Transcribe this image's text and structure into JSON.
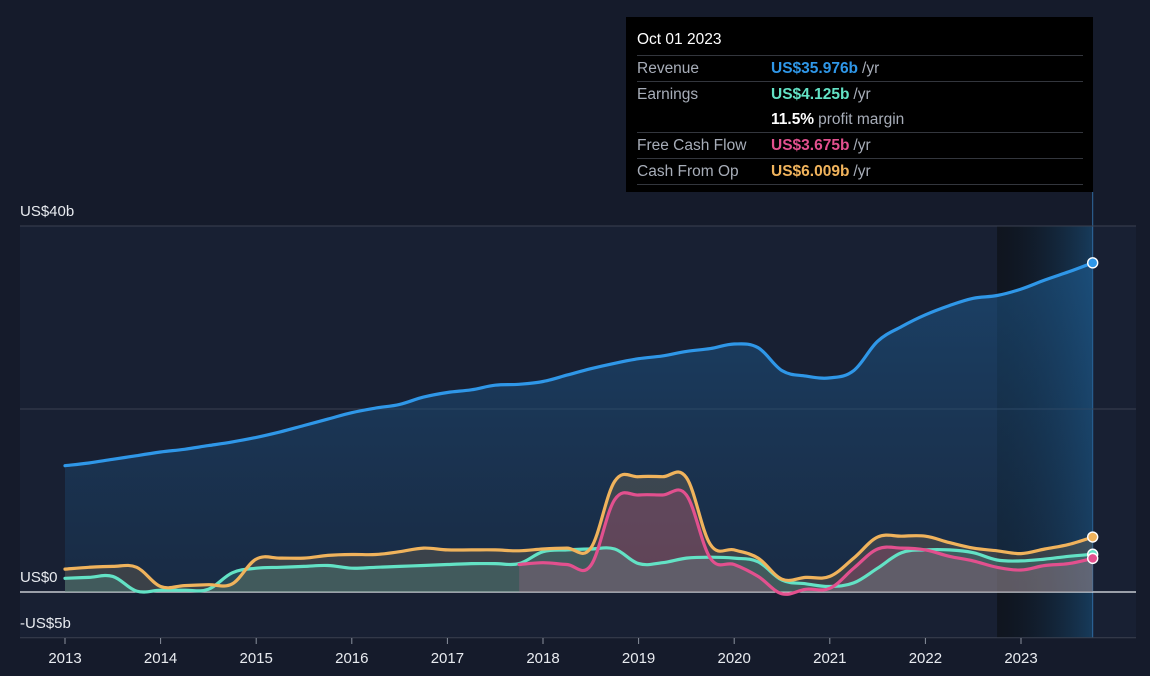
{
  "chart_data": {
    "type": "area",
    "y_unit": "US$b",
    "ylim": [
      -5,
      40
    ],
    "y_axis_labels": [
      {
        "value": 40,
        "label": "US$40b"
      },
      {
        "value": 0,
        "label": "US$0"
      },
      {
        "value": -5,
        "label": "-US$5b"
      }
    ],
    "x_ticks": [
      "2013",
      "2014",
      "2015",
      "2016",
      "2017",
      "2018",
      "2019",
      "2020",
      "2021",
      "2022",
      "2023"
    ],
    "xlim": [
      2013.0,
      2024.13
    ],
    "highlight_start": 2022.75,
    "highlight_end": 2023.75,
    "colors": {
      "revenue": "#2f97e8",
      "earnings": "#63e2c5",
      "fcf": "#e2508e",
      "cfo": "#f0b35c",
      "background": "#151b2b"
    },
    "series": [
      {
        "name": "Revenue",
        "key": "revenue",
        "points": [
          [
            2013.0,
            13.8
          ],
          [
            2013.25,
            14.1
          ],
          [
            2013.5,
            14.5
          ],
          [
            2013.75,
            14.9
          ],
          [
            2014.0,
            15.3
          ],
          [
            2014.25,
            15.6
          ],
          [
            2014.5,
            16.0
          ],
          [
            2014.75,
            16.4
          ],
          [
            2015.0,
            16.9
          ],
          [
            2015.25,
            17.5
          ],
          [
            2015.5,
            18.2
          ],
          [
            2015.75,
            18.9
          ],
          [
            2016.0,
            19.6
          ],
          [
            2016.25,
            20.1
          ],
          [
            2016.5,
            20.5
          ],
          [
            2016.75,
            21.3
          ],
          [
            2017.0,
            21.8
          ],
          [
            2017.25,
            22.1
          ],
          [
            2017.5,
            22.6
          ],
          [
            2017.75,
            22.7
          ],
          [
            2018.0,
            23.0
          ],
          [
            2018.25,
            23.7
          ],
          [
            2018.5,
            24.4
          ],
          [
            2018.75,
            25.0
          ],
          [
            2019.0,
            25.5
          ],
          [
            2019.25,
            25.8
          ],
          [
            2019.5,
            26.3
          ],
          [
            2019.75,
            26.6
          ],
          [
            2020.0,
            27.1
          ],
          [
            2020.25,
            26.7
          ],
          [
            2020.5,
            24.2
          ],
          [
            2020.75,
            23.6
          ],
          [
            2021.0,
            23.4
          ],
          [
            2021.25,
            24.2
          ],
          [
            2021.5,
            27.4
          ],
          [
            2021.75,
            29.0
          ],
          [
            2022.0,
            30.3
          ],
          [
            2022.25,
            31.3
          ],
          [
            2022.5,
            32.1
          ],
          [
            2022.75,
            32.4
          ],
          [
            2023.0,
            33.1
          ],
          [
            2023.25,
            34.1
          ],
          [
            2023.5,
            35.0
          ],
          [
            2023.75,
            35.976
          ]
        ]
      },
      {
        "name": "Earnings",
        "key": "earnings",
        "points": [
          [
            2013.0,
            1.5
          ],
          [
            2013.25,
            1.6
          ],
          [
            2013.5,
            1.7
          ],
          [
            2013.75,
            0.1
          ],
          [
            2014.0,
            0.2
          ],
          [
            2014.25,
            0.2
          ],
          [
            2014.5,
            0.3
          ],
          [
            2014.75,
            2.1
          ],
          [
            2015.0,
            2.6
          ],
          [
            2015.25,
            2.7
          ],
          [
            2015.5,
            2.8
          ],
          [
            2015.75,
            2.9
          ],
          [
            2016.0,
            2.6
          ],
          [
            2016.25,
            2.7
          ],
          [
            2016.5,
            2.8
          ],
          [
            2016.75,
            2.9
          ],
          [
            2017.0,
            3.0
          ],
          [
            2017.25,
            3.1
          ],
          [
            2017.5,
            3.1
          ],
          [
            2017.75,
            3.1
          ],
          [
            2018.0,
            4.4
          ],
          [
            2018.25,
            4.6
          ],
          [
            2018.5,
            4.7
          ],
          [
            2018.75,
            4.7
          ],
          [
            2019.0,
            3.1
          ],
          [
            2019.25,
            3.2
          ],
          [
            2019.5,
            3.7
          ],
          [
            2019.75,
            3.8
          ],
          [
            2020.0,
            3.7
          ],
          [
            2020.25,
            3.3
          ],
          [
            2020.5,
            1.3
          ],
          [
            2020.75,
            0.9
          ],
          [
            2021.0,
            0.6
          ],
          [
            2021.25,
            1.0
          ],
          [
            2021.5,
            2.6
          ],
          [
            2021.75,
            4.3
          ],
          [
            2022.0,
            4.6
          ],
          [
            2022.25,
            4.6
          ],
          [
            2022.5,
            4.3
          ],
          [
            2022.75,
            3.5
          ],
          [
            2023.0,
            3.4
          ],
          [
            2023.25,
            3.6
          ],
          [
            2023.5,
            3.9
          ],
          [
            2023.75,
            4.125
          ]
        ]
      },
      {
        "name": "Free Cash Flow",
        "key": "fcf",
        "points": [
          [
            2017.75,
            3.0
          ],
          [
            2018.0,
            3.2
          ],
          [
            2018.25,
            3.0
          ],
          [
            2018.5,
            2.9
          ],
          [
            2018.75,
            10.1
          ],
          [
            2019.0,
            10.6
          ],
          [
            2019.25,
            10.6
          ],
          [
            2019.5,
            10.6
          ],
          [
            2019.75,
            3.7
          ],
          [
            2020.0,
            3.0
          ],
          [
            2020.25,
            1.7
          ],
          [
            2020.5,
            -0.2
          ],
          [
            2020.75,
            0.3
          ],
          [
            2021.0,
            0.4
          ],
          [
            2021.25,
            2.6
          ],
          [
            2021.5,
            4.7
          ],
          [
            2021.75,
            4.8
          ],
          [
            2022.0,
            4.6
          ],
          [
            2022.25,
            3.9
          ],
          [
            2022.5,
            3.4
          ],
          [
            2022.75,
            2.7
          ],
          [
            2023.0,
            2.4
          ],
          [
            2023.25,
            2.9
          ],
          [
            2023.5,
            3.1
          ],
          [
            2023.75,
            3.675
          ]
        ]
      },
      {
        "name": "Cash From Op",
        "key": "cfo",
        "points": [
          [
            2013.0,
            2.5
          ],
          [
            2013.25,
            2.7
          ],
          [
            2013.5,
            2.8
          ],
          [
            2013.75,
            2.7
          ],
          [
            2014.0,
            0.6
          ],
          [
            2014.25,
            0.7
          ],
          [
            2014.5,
            0.8
          ],
          [
            2014.75,
            0.9
          ],
          [
            2015.0,
            3.6
          ],
          [
            2015.25,
            3.7
          ],
          [
            2015.5,
            3.7
          ],
          [
            2015.75,
            4.0
          ],
          [
            2016.0,
            4.1
          ],
          [
            2016.25,
            4.1
          ],
          [
            2016.5,
            4.4
          ],
          [
            2016.75,
            4.8
          ],
          [
            2017.0,
            4.6
          ],
          [
            2017.25,
            4.6
          ],
          [
            2017.5,
            4.6
          ],
          [
            2017.75,
            4.5
          ],
          [
            2018.0,
            4.7
          ],
          [
            2018.25,
            4.8
          ],
          [
            2018.5,
            4.8
          ],
          [
            2018.75,
            12.1
          ],
          [
            2019.0,
            12.6
          ],
          [
            2019.25,
            12.6
          ],
          [
            2019.5,
            12.5
          ],
          [
            2019.75,
            5.2
          ],
          [
            2020.0,
            4.6
          ],
          [
            2020.25,
            3.7
          ],
          [
            2020.5,
            1.4
          ],
          [
            2020.75,
            1.6
          ],
          [
            2021.0,
            1.7
          ],
          [
            2021.25,
            3.7
          ],
          [
            2021.5,
            6.0
          ],
          [
            2021.75,
            6.1
          ],
          [
            2022.0,
            6.1
          ],
          [
            2022.25,
            5.4
          ],
          [
            2022.5,
            4.8
          ],
          [
            2022.75,
            4.5
          ],
          [
            2023.0,
            4.2
          ],
          [
            2023.25,
            4.7
          ],
          [
            2023.5,
            5.2
          ],
          [
            2023.75,
            6.009
          ]
        ]
      }
    ]
  },
  "tooltip": {
    "date": "Oct 01 2023",
    "unit": "/yr",
    "revenue_label": "Revenue",
    "revenue_value": "US$35.976b",
    "earnings_label": "Earnings",
    "earnings_value": "US$4.125b",
    "margin_value": "11.5%",
    "margin_label": "profit margin",
    "fcf_label": "Free Cash Flow",
    "fcf_value": "US$3.675b",
    "cfo_label": "Cash From Op",
    "cfo_value": "US$6.009b"
  }
}
